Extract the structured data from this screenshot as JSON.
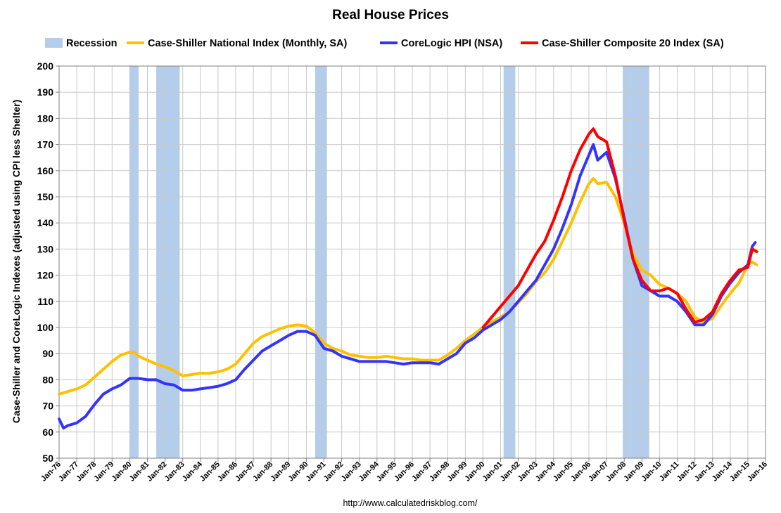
{
  "chart_data": {
    "type": "line",
    "title": "Real House Prices",
    "ylabel": "Case-Shiller and CoreLogic Indexes (adjusted using CPI less Shelter)",
    "xlabel": "",
    "source": "http://www.calculatedriskblog.com/",
    "ylim": [
      50,
      200
    ],
    "yticks": [
      "50",
      "60",
      "70",
      "80",
      "90",
      "100",
      "110",
      "120",
      "130",
      "140",
      "150",
      "160",
      "170",
      "180",
      "190",
      "200"
    ],
    "xlim": [
      "1976-01",
      "2016-01"
    ],
    "xticks": [
      "Jan-76",
      "Jan-77",
      "Jan-78",
      "Jan-79",
      "Jan-80",
      "Jan-81",
      "Jan-82",
      "Jan-83",
      "Jan-84",
      "Jan-85",
      "Jan-86",
      "Jan-87",
      "Jan-88",
      "Jan-89",
      "Jan-90",
      "Jan-91",
      "Jan-92",
      "Jan-93",
      "Jan-94",
      "Jan-95",
      "Jan-96",
      "Jan-97",
      "Jan-98",
      "Jan-99",
      "Jan-00",
      "Jan-01",
      "Jan-02",
      "Jan-03",
      "Jan-04",
      "Jan-05",
      "Jan-06",
      "Jan-07",
      "Jan-08",
      "Jan-09",
      "Jan-10",
      "Jan-11",
      "Jan-12",
      "Jan-13",
      "Jan-14",
      "Jan-15",
      "Jan-16"
    ],
    "grid": true,
    "legend_position": "top",
    "recessions": [
      [
        "1980-01",
        "1980-07"
      ],
      [
        "1981-07",
        "1982-11"
      ],
      [
        "1990-07",
        "1991-03"
      ],
      [
        "2001-03",
        "2001-11"
      ],
      [
        "2007-12",
        "2009-06"
      ]
    ],
    "legend": [
      {
        "name": "Recession",
        "kind": "band",
        "color": "#b4cdeb"
      },
      {
        "name": "Case-Shiller National Index (Monthly, SA)",
        "kind": "line",
        "color": "#ffc000"
      },
      {
        "name": "CoreLogic HPI (NSA)",
        "kind": "line",
        "color": "#3333ff"
      },
      {
        "name": "Case-Shiller Composite 20 Index (SA)",
        "kind": "line",
        "color": "#ff0000"
      }
    ],
    "series": [
      {
        "name": "Case-Shiller National Index (Monthly, SA)",
        "color": "#ffc000",
        "x": [
          "1976-01",
          "1976-07",
          "1977-01",
          "1977-07",
          "1978-01",
          "1978-07",
          "1979-01",
          "1979-07",
          "1980-01",
          "1980-04",
          "1980-07",
          "1981-01",
          "1981-07",
          "1982-01",
          "1982-07",
          "1983-01",
          "1983-07",
          "1984-01",
          "1984-07",
          "1985-01",
          "1985-07",
          "1986-01",
          "1986-07",
          "1987-01",
          "1987-07",
          "1988-01",
          "1988-07",
          "1989-01",
          "1989-07",
          "1990-01",
          "1990-07",
          "1991-01",
          "1991-07",
          "1992-01",
          "1992-07",
          "1993-01",
          "1993-07",
          "1994-01",
          "1994-07",
          "1995-01",
          "1995-07",
          "1996-01",
          "1996-07",
          "1997-01",
          "1997-07",
          "1998-01",
          "1998-07",
          "1999-01",
          "1999-07",
          "2000-01",
          "2000-07",
          "2001-01",
          "2001-07",
          "2002-01",
          "2002-07",
          "2003-01",
          "2003-07",
          "2004-01",
          "2004-07",
          "2005-01",
          "2005-07",
          "2006-01",
          "2006-04",
          "2006-07",
          "2007-01",
          "2007-07",
          "2008-01",
          "2008-07",
          "2009-01",
          "2009-07",
          "2010-01",
          "2010-07",
          "2011-01",
          "2011-07",
          "2012-01",
          "2012-07",
          "2013-01",
          "2013-07",
          "2014-01",
          "2014-07",
          "2015-01",
          "2015-04",
          "2015-07"
        ],
        "values": [
          74.5,
          75.5,
          76.5,
          78,
          81,
          84,
          87,
          89.5,
          90.5,
          90.5,
          89,
          87.5,
          86,
          85,
          83.5,
          81.5,
          82,
          82.5,
          82.5,
          83,
          84,
          86,
          90,
          94,
          96.5,
          98,
          99.5,
          100.5,
          101,
          100.5,
          98,
          94,
          92,
          91,
          89.5,
          89,
          88.5,
          88.5,
          89,
          88.5,
          88,
          88,
          87.5,
          87.5,
          87.5,
          89.5,
          92,
          95,
          97.5,
          100,
          102,
          104,
          106,
          109.5,
          113,
          117.5,
          121,
          126,
          133,
          140,
          148,
          155,
          157,
          155,
          155.5,
          150,
          140,
          128,
          122,
          120,
          116.5,
          115,
          113,
          110,
          104,
          102,
          103.5,
          108.5,
          113,
          117,
          124,
          125,
          124
        ]
      },
      {
        "name": "CoreLogic HPI (NSA)",
        "color": "#3333ff",
        "x": [
          "1976-01",
          "1976-04",
          "1976-07",
          "1977-01",
          "1977-07",
          "1978-01",
          "1978-07",
          "1979-01",
          "1979-07",
          "1980-01",
          "1980-07",
          "1981-01",
          "1981-07",
          "1982-01",
          "1982-07",
          "1983-01",
          "1983-07",
          "1984-01",
          "1984-07",
          "1985-01",
          "1985-07",
          "1986-01",
          "1986-07",
          "1987-01",
          "1987-07",
          "1988-01",
          "1988-07",
          "1989-01",
          "1989-07",
          "1990-01",
          "1990-07",
          "1991-01",
          "1991-07",
          "1992-01",
          "1992-07",
          "1993-01",
          "1993-07",
          "1994-01",
          "1994-07",
          "1995-01",
          "1995-07",
          "1996-01",
          "1996-07",
          "1997-01",
          "1997-07",
          "1998-01",
          "1998-07",
          "1999-01",
          "1999-07",
          "2000-01",
          "2000-07",
          "2001-01",
          "2001-07",
          "2002-01",
          "2002-07",
          "2003-01",
          "2003-07",
          "2004-01",
          "2004-07",
          "2005-01",
          "2005-07",
          "2006-01",
          "2006-04",
          "2006-07",
          "2007-01",
          "2007-07",
          "2008-01",
          "2008-07",
          "2009-01",
          "2009-07",
          "2010-01",
          "2010-07",
          "2011-01",
          "2011-07",
          "2012-01",
          "2012-07",
          "2013-01",
          "2013-07",
          "2014-01",
          "2014-07",
          "2015-01",
          "2015-04",
          "2015-06"
        ],
        "values": [
          65,
          61.5,
          62.5,
          63.5,
          66,
          70.5,
          74.5,
          76.5,
          78,
          80.5,
          80.5,
          80,
          80,
          78.5,
          78,
          76,
          76,
          76.5,
          77,
          77.5,
          78.5,
          80,
          84,
          87.5,
          91,
          93,
          95,
          97,
          98.5,
          98.5,
          97,
          92,
          91,
          89,
          88,
          87,
          87,
          87,
          87,
          86.5,
          86,
          86.5,
          86.5,
          86.5,
          86,
          88,
          90,
          94,
          96,
          99,
          101,
          103,
          106,
          110,
          114,
          118,
          124,
          130,
          138,
          147,
          158,
          166,
          170,
          164,
          167,
          157,
          142,
          126,
          116,
          114,
          112,
          112,
          110,
          106,
          101,
          101,
          105,
          112,
          117,
          121,
          124,
          131,
          132.5
        ]
      },
      {
        "name": "Case-Shiller Composite 20 Index (SA)",
        "color": "#ff0000",
        "x": [
          "2000-01",
          "2000-07",
          "2001-01",
          "2001-07",
          "2002-01",
          "2002-07",
          "2003-01",
          "2003-07",
          "2004-01",
          "2004-07",
          "2005-01",
          "2005-07",
          "2006-01",
          "2006-04",
          "2006-07",
          "2007-01",
          "2007-07",
          "2008-01",
          "2008-07",
          "2009-01",
          "2009-07",
          "2010-01",
          "2010-07",
          "2011-01",
          "2011-07",
          "2012-01",
          "2012-07",
          "2013-01",
          "2013-07",
          "2014-01",
          "2014-07",
          "2015-01",
          "2015-04",
          "2015-07"
        ],
        "values": [
          100,
          104,
          108,
          112,
          116,
          122,
          128,
          133,
          141,
          150,
          160,
          168,
          174,
          176,
          173,
          171,
          158,
          141,
          126,
          118,
          114,
          114,
          115,
          113,
          107,
          102,
          103,
          106,
          113,
          118,
          122,
          123,
          130,
          129
        ]
      }
    ]
  }
}
